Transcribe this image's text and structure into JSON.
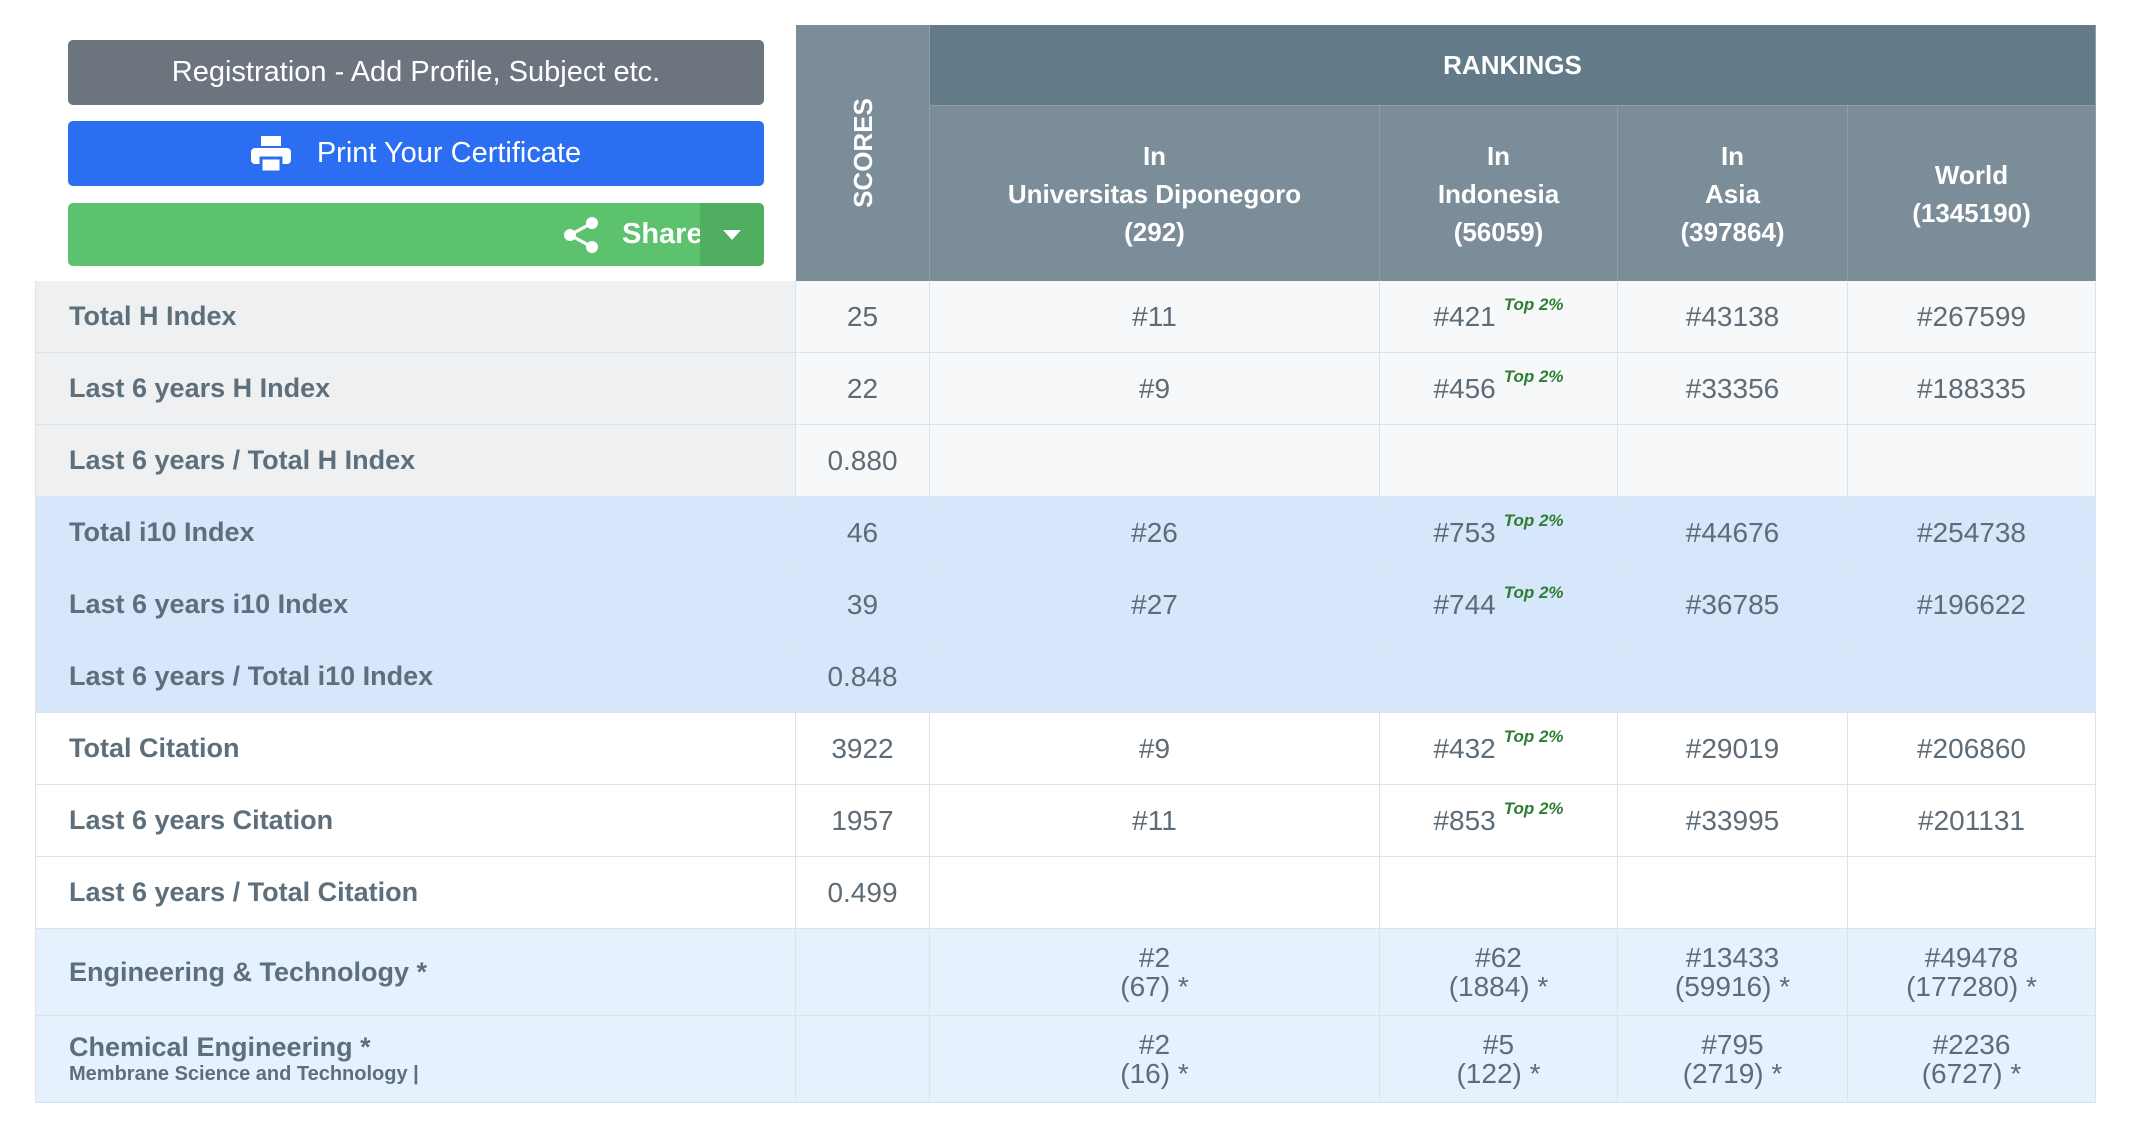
{
  "buttons": {
    "registration": "Registration - Add Profile, Subject etc.",
    "print": "Print Your Certificate",
    "share": "Share"
  },
  "header": {
    "scores": "SCORES",
    "rankings": "RANKINGS",
    "columns": [
      [
        "In",
        "Universitas Diponegoro",
        "(292)"
      ],
      [
        "In",
        "Indonesia",
        "(56059)"
      ],
      [
        "In",
        "Asia",
        "(397864)"
      ],
      [
        "World",
        "(1345190)"
      ]
    ]
  },
  "rows": [
    {
      "label": "Total H Index",
      "score": "25",
      "ranks": [
        {
          "rank": "#11"
        },
        {
          "rank": "#421",
          "badge": "Top 2%"
        },
        {
          "rank": "#43138"
        },
        {
          "rank": "#267599"
        }
      ]
    },
    {
      "label": "Last 6 years H Index",
      "score": "22",
      "ranks": [
        {
          "rank": "#9"
        },
        {
          "rank": "#456",
          "badge": "Top 2%"
        },
        {
          "rank": "#33356"
        },
        {
          "rank": "#188335"
        }
      ]
    },
    {
      "label": "Last 6 years / Total H Index",
      "score": "0.880",
      "ranks": [
        null,
        null,
        null,
        null
      ]
    },
    {
      "label": "Total i10 Index",
      "score": "46",
      "ranks": [
        {
          "rank": "#26"
        },
        {
          "rank": "#753",
          "badge": "Top 2%"
        },
        {
          "rank": "#44676"
        },
        {
          "rank": "#254738"
        }
      ]
    },
    {
      "label": "Last 6 years i10 Index",
      "score": "39",
      "ranks": [
        {
          "rank": "#27"
        },
        {
          "rank": "#744",
          "badge": "Top 2%"
        },
        {
          "rank": "#36785"
        },
        {
          "rank": "#196622"
        }
      ]
    },
    {
      "label": "Last 6 years / Total i10 Index",
      "score": "0.848",
      "ranks": [
        null,
        null,
        null,
        null
      ]
    },
    {
      "label": "Total Citation",
      "score": "3922",
      "ranks": [
        {
          "rank": "#9"
        },
        {
          "rank": "#432",
          "badge": "Top 2%"
        },
        {
          "rank": "#29019"
        },
        {
          "rank": "#206860"
        }
      ]
    },
    {
      "label": "Last 6 years Citation",
      "score": "1957",
      "ranks": [
        {
          "rank": "#11"
        },
        {
          "rank": "#853",
          "badge": "Top 2%"
        },
        {
          "rank": "#33995"
        },
        {
          "rank": "#201131"
        }
      ]
    },
    {
      "label": "Last 6 years / Total Citation",
      "score": "0.499",
      "ranks": [
        null,
        null,
        null,
        null
      ]
    },
    {
      "label": "Engineering & Technology *",
      "ranks": [
        {
          "rank": "#2",
          "count": "(67) *"
        },
        {
          "rank": "#62",
          "count": "(1884) *"
        },
        {
          "rank": "#13433",
          "count": "(59916) *"
        },
        {
          "rank": "#49478",
          "count": "(177280) *"
        }
      ]
    },
    {
      "label": "Chemical Engineering *",
      "sublabel": "Membrane Science and Technology |",
      "ranks": [
        {
          "rank": "#2",
          "count": "(16) *"
        },
        {
          "rank": "#5",
          "count": "(122) *"
        },
        {
          "rank": "#795",
          "count": "(2719) *"
        },
        {
          "rank": "#2236",
          "count": "(6727) *"
        }
      ]
    }
  ]
}
